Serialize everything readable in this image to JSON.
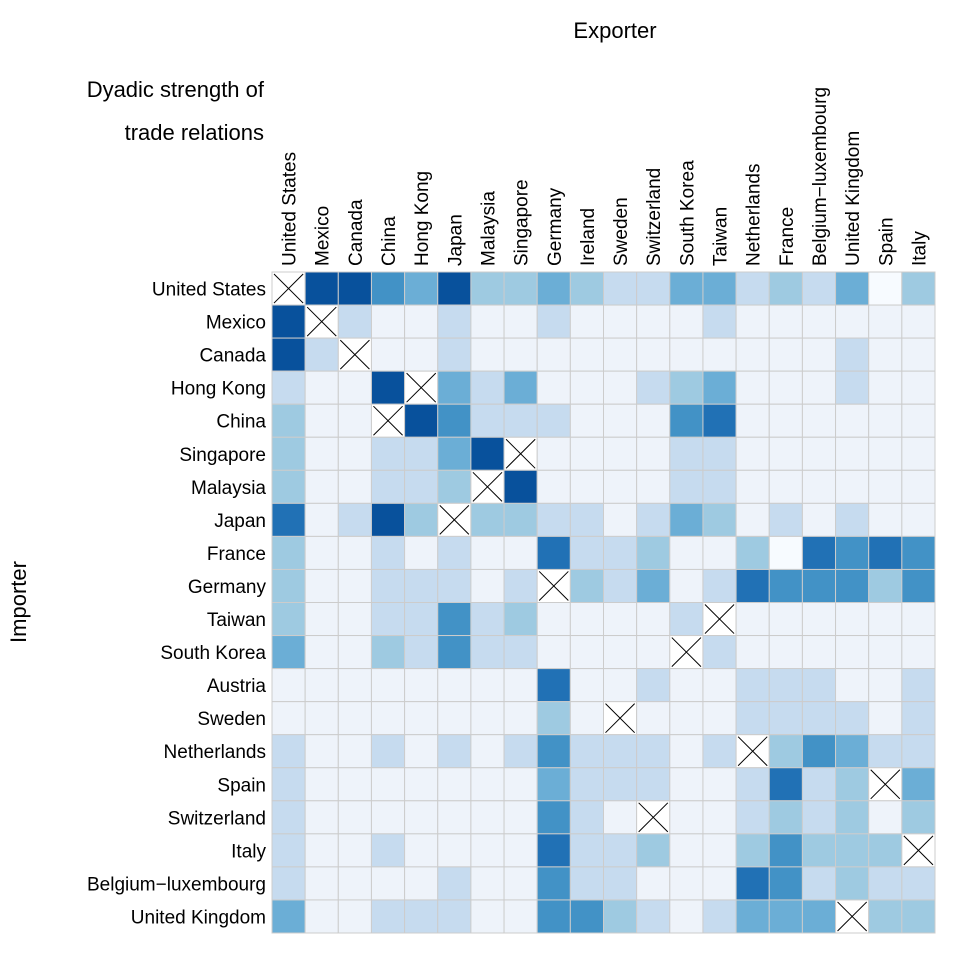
{
  "chart_data": {
    "type": "heatmap",
    "title": [
      "Dyadic strength of",
      "trade relations"
    ],
    "x_label": "Exporter",
    "y_label": "Importer",
    "x": [
      "United States",
      "Mexico",
      "Canada",
      "China",
      "Hong Kong",
      "Japan",
      "Malaysia",
      "Singapore",
      "Germany",
      "Ireland",
      "Sweden",
      "Switzerland",
      "South Korea",
      "Taiwan",
      "Netherlands",
      "France",
      "Belgium−luxembourg",
      "United Kingdom",
      "Spain",
      "Italy"
    ],
    "x_colors": [
      "#984ea3",
      "#4daf4a",
      "#984ea3",
      "#e41a1c",
      "#e41a1c",
      "#e41a1c",
      "#ff7f00",
      "#ff7f00",
      "#377eb8",
      "#377eb8",
      "#377eb8",
      "#377eb8",
      "#e41a1c",
      "#e41a1c",
      "#377eb8",
      "#377eb8",
      "#377eb8",
      "#377eb8",
      "#377eb8",
      "#377eb8"
    ],
    "y": [
      "United States",
      "Mexico",
      "Canada",
      "Hong Kong",
      "China",
      "Singapore",
      "Malaysia",
      "Japan",
      "France",
      "Germany",
      "Taiwan",
      "South Korea",
      "Austria",
      "Sweden",
      "Netherlands",
      "Spain",
      "Switzerland",
      "Italy",
      "Belgium−luxembourg",
      "United Kingdom"
    ],
    "y_colors": [
      "#984ea3",
      "#4daf4a",
      "#984ea3",
      "#e41a1c",
      "#e41a1c",
      "#ff7f00",
      "#ff7f00",
      "#e41a1c",
      "#377eb8",
      "#377eb8",
      "#e41a1c",
      "#e41a1c",
      "#377eb8",
      "#377eb8",
      "#377eb8",
      "#377eb8",
      "#377eb8",
      "#377eb8",
      "#377eb8",
      "#377eb8"
    ],
    "colors": [
      "#f7fbff",
      "#eef3fa",
      "#c6dbef",
      "#9ecae1",
      "#6baed6",
      "#4292c6",
      "#2171b5",
      "#08519c"
    ],
    "values": [
      [
        null,
        7,
        7,
        5,
        4,
        7,
        3,
        3,
        4,
        3,
        2,
        2,
        4,
        4,
        2,
        3,
        2,
        4,
        0,
        3
      ],
      [
        7,
        null,
        2,
        1,
        1,
        2,
        1,
        1,
        2,
        1,
        1,
        1,
        1,
        2,
        1,
        1,
        1,
        1,
        1,
        1
      ],
      [
        7,
        2,
        null,
        1,
        1,
        2,
        1,
        1,
        1,
        1,
        1,
        1,
        1,
        1,
        1,
        1,
        1,
        2,
        1,
        1
      ],
      [
        2,
        1,
        1,
        7,
        null,
        4,
        2,
        4,
        1,
        1,
        1,
        2,
        3,
        4,
        1,
        1,
        1,
        2,
        1,
        1
      ],
      [
        3,
        1,
        1,
        null,
        7,
        5,
        2,
        2,
        2,
        1,
        1,
        1,
        5,
        6,
        1,
        1,
        1,
        1,
        1,
        1
      ],
      [
        3,
        1,
        1,
        2,
        2,
        4,
        7,
        null,
        1,
        1,
        1,
        1,
        2,
        2,
        1,
        1,
        1,
        1,
        1,
        1
      ],
      [
        3,
        1,
        1,
        2,
        2,
        3,
        null,
        7,
        1,
        1,
        1,
        1,
        2,
        2,
        1,
        1,
        1,
        1,
        1,
        1
      ],
      [
        6,
        1,
        2,
        7,
        3,
        null,
        3,
        3,
        2,
        2,
        1,
        2,
        4,
        3,
        1,
        2,
        1,
        2,
        1,
        1
      ],
      [
        3,
        1,
        1,
        2,
        1,
        2,
        1,
        1,
        6,
        2,
        2,
        3,
        1,
        1,
        3,
        0,
        6,
        5,
        6,
        5
      ],
      [
        3,
        1,
        1,
        2,
        2,
        2,
        1,
        2,
        null,
        3,
        2,
        4,
        1,
        2,
        6,
        5,
        5,
        5,
        3,
        5
      ],
      [
        3,
        1,
        1,
        2,
        2,
        5,
        2,
        3,
        1,
        1,
        1,
        1,
        2,
        null,
        1,
        1,
        1,
        1,
        1,
        1
      ],
      [
        4,
        1,
        1,
        3,
        2,
        5,
        2,
        2,
        1,
        1,
        1,
        1,
        null,
        2,
        1,
        1,
        1,
        1,
        1,
        1
      ],
      [
        1,
        1,
        1,
        1,
        1,
        1,
        1,
        1,
        6,
        1,
        1,
        2,
        1,
        1,
        2,
        2,
        2,
        1,
        1,
        2
      ],
      [
        1,
        1,
        1,
        1,
        1,
        1,
        1,
        1,
        3,
        1,
        null,
        1,
        1,
        1,
        2,
        2,
        2,
        2,
        1,
        2
      ],
      [
        2,
        1,
        1,
        2,
        1,
        2,
        1,
        2,
        5,
        2,
        2,
        2,
        1,
        2,
        null,
        3,
        5,
        4,
        2,
        2
      ],
      [
        2,
        1,
        1,
        1,
        1,
        1,
        1,
        1,
        4,
        2,
        2,
        2,
        1,
        1,
        2,
        6,
        2,
        3,
        null,
        4
      ],
      [
        2,
        1,
        1,
        1,
        1,
        1,
        1,
        1,
        5,
        2,
        1,
        null,
        1,
        1,
        2,
        3,
        2,
        3,
        1,
        3
      ],
      [
        2,
        1,
        1,
        2,
        1,
        1,
        1,
        1,
        6,
        2,
        2,
        3,
        1,
        1,
        3,
        5,
        3,
        3,
        3,
        null
      ],
      [
        2,
        1,
        1,
        1,
        1,
        2,
        1,
        1,
        5,
        2,
        2,
        1,
        1,
        1,
        6,
        5,
        2,
        3,
        2,
        2
      ],
      [
        4,
        1,
        1,
        2,
        2,
        2,
        1,
        1,
        5,
        5,
        3,
        2,
        1,
        2,
        4,
        4,
        4,
        null,
        3,
        3
      ]
    ]
  }
}
